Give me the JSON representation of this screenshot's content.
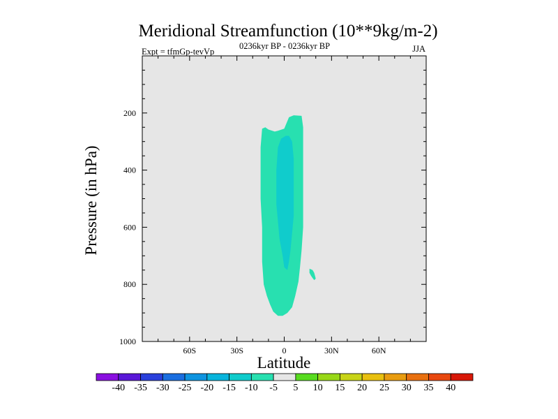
{
  "chart_data": {
    "type": "contour",
    "title": "Meridional Streamfunction (10**9kg/m-2)",
    "left_string": "Expt = tfmGp-tevVp",
    "center_string": "0236kyr BP - 0236kyr BP",
    "right_string": "JJA",
    "xlabel": "Latitude",
    "ylabel": "Pressure (in hPa)",
    "xlim": [
      -90,
      90
    ],
    "ylim": [
      1000,
      0
    ],
    "x_ticks": [
      {
        "value": -60,
        "label": "60S"
      },
      {
        "value": -30,
        "label": "30S"
      },
      {
        "value": 0,
        "label": "0"
      },
      {
        "value": 30,
        "label": "30N"
      },
      {
        "value": 60,
        "label": "60N"
      }
    ],
    "y_ticks": [
      {
        "value": 200,
        "label": "200"
      },
      {
        "value": 400,
        "label": "400"
      },
      {
        "value": 600,
        "label": "600"
      },
      {
        "value": 800,
        "label": "800"
      },
      {
        "value": 1000,
        "label": "1000"
      }
    ],
    "background_color": "#e6e6e6",
    "contour_levels": [
      -40,
      -35,
      -30,
      -25,
      -20,
      -15,
      -10,
      -5,
      5,
      10,
      15,
      20,
      25,
      30,
      35,
      40
    ],
    "colorbar_colors": [
      "#8a10e0",
      "#5a18d8",
      "#2a40dc",
      "#1a6ee0",
      "#0e94e0",
      "#08b4dc",
      "#10cccc",
      "#28e0b0",
      "#e6e6e6",
      "#58dc20",
      "#98d818",
      "#c8d418",
      "#e8c010",
      "#e89c10",
      "#e87010",
      "#e84810",
      "#d81808"
    ],
    "regions": [
      {
        "level_band": "-10 to -5",
        "color": "#28e0b0",
        "outline": [
          [
            -14,
            255
          ],
          [
            -12,
            250
          ],
          [
            -10,
            258
          ],
          [
            -6,
            265
          ],
          [
            -4,
            262
          ],
          [
            0,
            255
          ],
          [
            3,
            215
          ],
          [
            6,
            208
          ],
          [
            11,
            210
          ],
          [
            12,
            250
          ],
          [
            12,
            320
          ],
          [
            12,
            400
          ],
          [
            12,
            500
          ],
          [
            12,
            600
          ],
          [
            11,
            680
          ],
          [
            10,
            740
          ],
          [
            9,
            790
          ],
          [
            7,
            840
          ],
          [
            5,
            880
          ],
          [
            2,
            900
          ],
          [
            -1,
            910
          ],
          [
            -4,
            910
          ],
          [
            -7,
            895
          ],
          [
            -9,
            870
          ],
          [
            -11,
            840
          ],
          [
            -13,
            800
          ],
          [
            -14,
            720
          ],
          [
            -14,
            600
          ],
          [
            -15,
            500
          ],
          [
            -15,
            400
          ],
          [
            -15,
            320
          ]
        ]
      },
      {
        "level_band": "-15 to -10",
        "color": "#10cccc",
        "outline": [
          [
            -5,
            400
          ],
          [
            -4,
            320
          ],
          [
            -2,
            290
          ],
          [
            1,
            280
          ],
          [
            3,
            280
          ],
          [
            5,
            300
          ],
          [
            6,
            360
          ],
          [
            6,
            420
          ],
          [
            6,
            500
          ],
          [
            6,
            560
          ],
          [
            5,
            620
          ],
          [
            4,
            680
          ],
          [
            3,
            720
          ],
          [
            2,
            750
          ],
          [
            0,
            740
          ],
          [
            -1,
            700
          ],
          [
            -3,
            640
          ],
          [
            -4,
            580
          ],
          [
            -5,
            520
          ],
          [
            -5,
            460
          ]
        ]
      },
      {
        "level_band": "-10 to -5",
        "color": "#28e0b0",
        "outline": [
          [
            16,
            745
          ],
          [
            18,
            750
          ],
          [
            19,
            760
          ],
          [
            20,
            780
          ],
          [
            19,
            785
          ],
          [
            18,
            778
          ],
          [
            17,
            770
          ],
          [
            16,
            760
          ]
        ]
      }
    ]
  }
}
